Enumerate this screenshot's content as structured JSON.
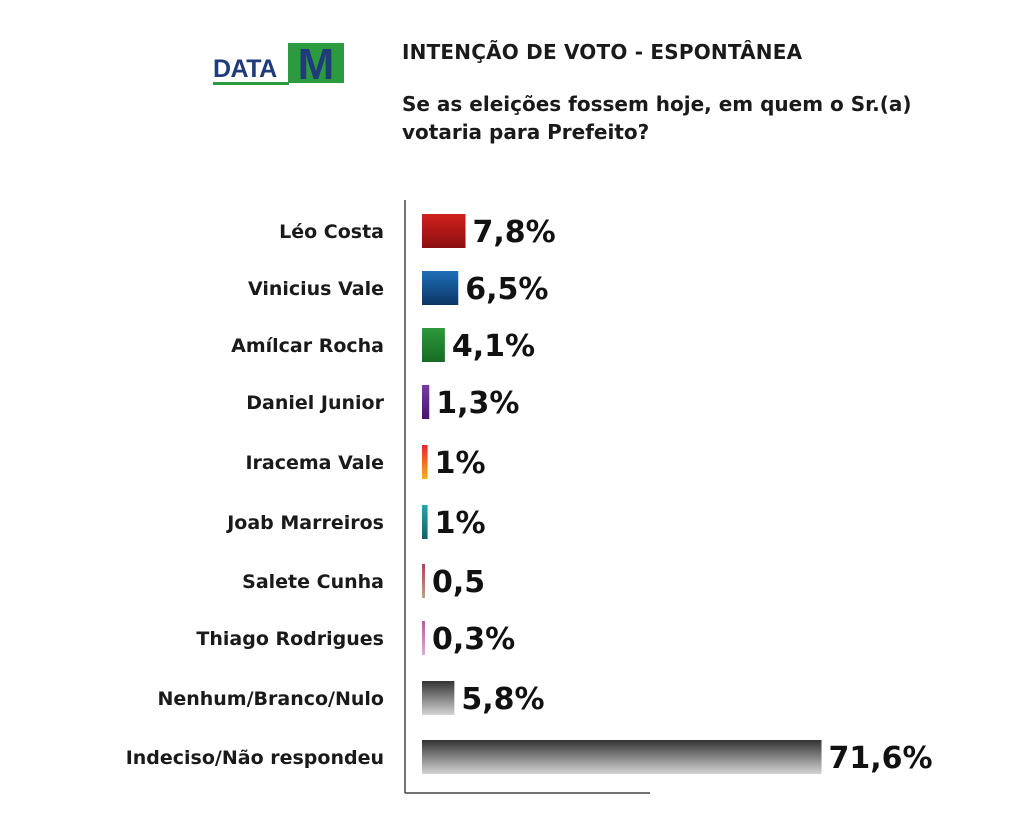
{
  "logo": {
    "text_data": "DATA",
    "text_m": "M"
  },
  "header": {
    "title": "INTENÇÃO DE VOTO - ESPONTÂNEA",
    "question": "Se as eleições fossem hoje, em quem o Sr.(a) votaria para Prefeito?"
  },
  "chart_data": {
    "type": "bar",
    "orientation": "horizontal",
    "categories": [
      "Léo Costa",
      "Vinicius Vale",
      "Amílcar Rocha",
      "Daniel Junior",
      "Iracema Vale",
      "Joab Marreiros",
      "Salete Cunha",
      "Thiago Rodrigues",
      "Nenhum/Branco/Nulo",
      "Indeciso/Não respondeu"
    ],
    "values": [
      7.8,
      6.5,
      4.1,
      1.3,
      1,
      1,
      0.5,
      0.3,
      5.8,
      71.6
    ],
    "data_labels": [
      "7,8%",
      "6,5%",
      "4,1%",
      "1,3%",
      "1%",
      "1%",
      "0,5",
      "0,3%",
      "5,8%",
      "71,6%"
    ],
    "colors": [
      [
        "#d0211e",
        "#8c0f10"
      ],
      [
        "#1e6fb8",
        "#0d3563"
      ],
      [
        "#2e9a3a",
        "#166b22"
      ],
      [
        "#7b3aa6",
        "#4a1570"
      ],
      [
        "#e7252b",
        "#f6b21e"
      ],
      [
        "#2aa3b0",
        "#156066"
      ],
      [
        "#b0405a",
        "#c6a07c"
      ],
      [
        "#b65ba3",
        "#e2a9d6"
      ],
      [
        "#333333",
        "#d4d4d4"
      ],
      [
        "#333333",
        "#d4d4d4"
      ]
    ],
    "legend": "none",
    "grid": false
  }
}
